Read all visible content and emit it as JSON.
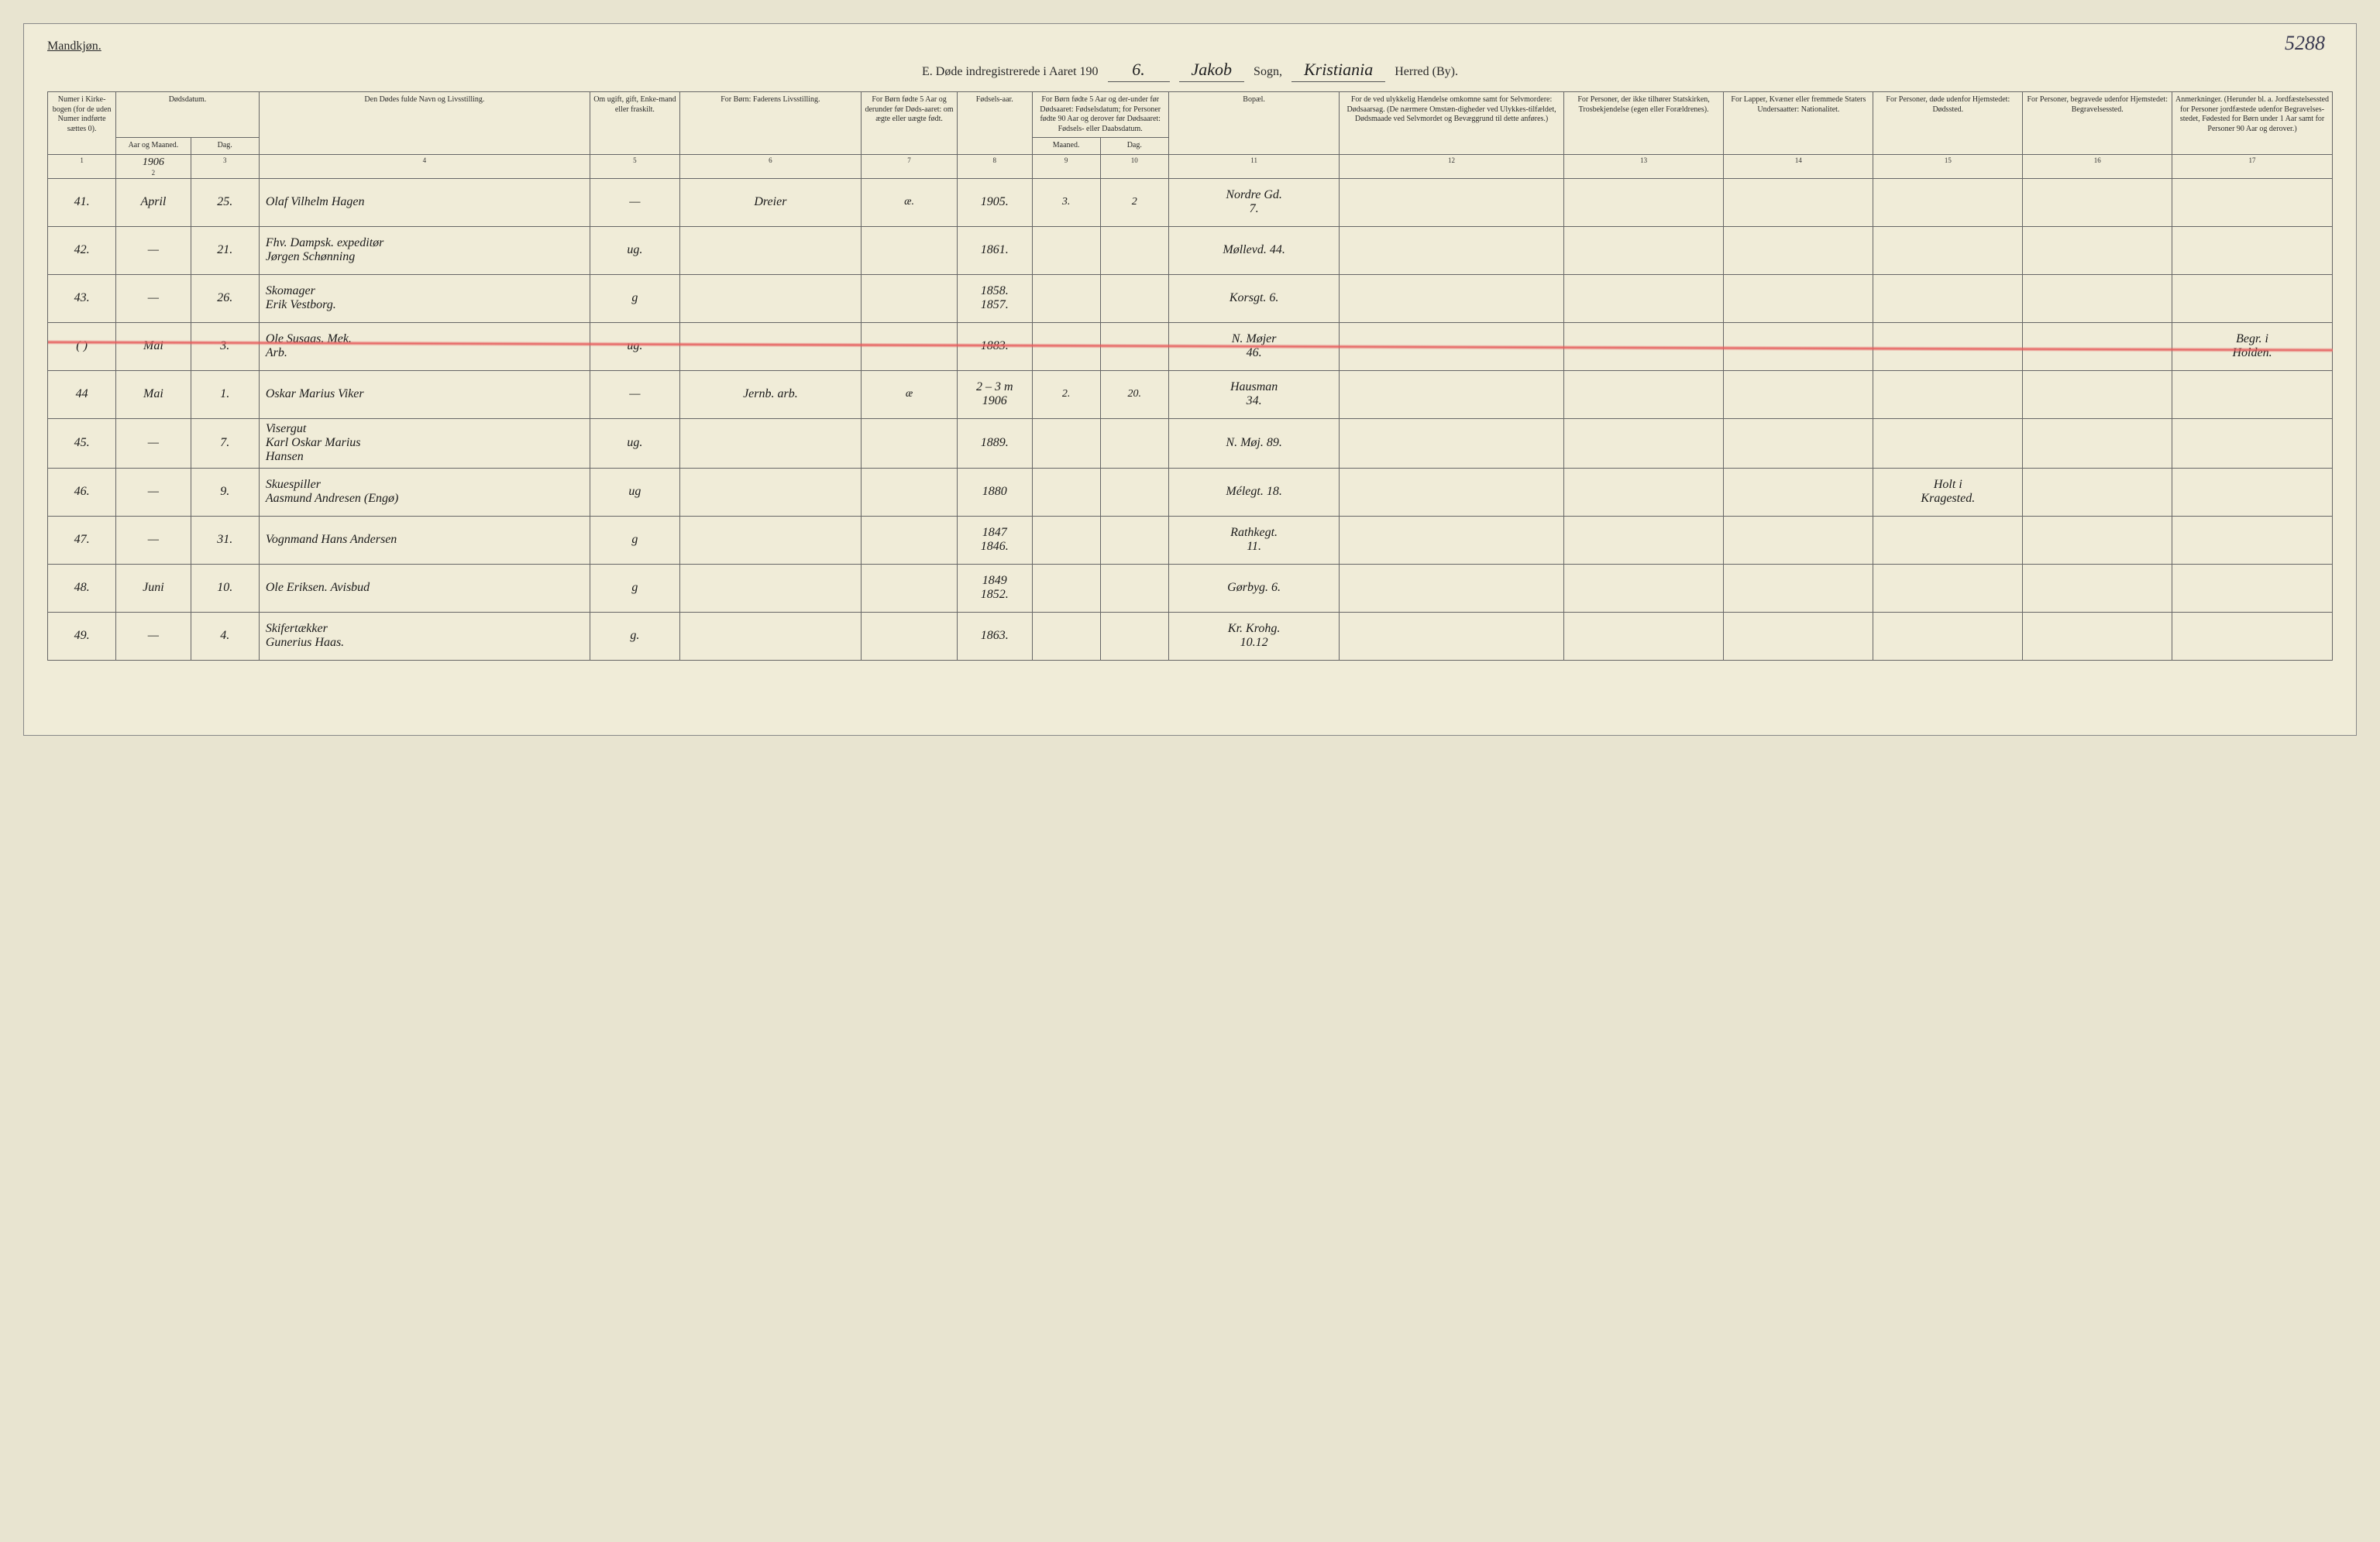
{
  "page_number_handwritten": "5288",
  "gender_label": "Mandkjøn.",
  "title": {
    "prefix": "E.  Døde indregistrerede i Aaret 190",
    "year_hw": "6.",
    "sogn_label": "Sogn,",
    "sogn_value_hw": "Jakob",
    "herred_label": "Herred (By).",
    "herred_value_hw": "Kristiania"
  },
  "columns": {
    "col_widths_pct": [
      3.2,
      3.5,
      3.2,
      15.5,
      4.2,
      8.5,
      4.5,
      3.5,
      3.2,
      3.2,
      8.0,
      10.5,
      7.5,
      7.0,
      7.0,
      7.0,
      7.5
    ],
    "headers": {
      "c1": {
        "top": "Numer i Kirke-bogen (for de uden Numer indførte sættes 0).",
        "span": 1
      },
      "c2_3": {
        "top": "Dødsdatum.",
        "sub_left": "Aar og Maaned.",
        "sub_right": "Dag."
      },
      "c4": "Den Dødes fulde Navn og Livsstilling.",
      "c5": "Om ugift, gift, Enke-mand eller fraskilt.",
      "c6": "For Børn:\nFaderens Livsstilling.",
      "c7": "For Børn fødte 5 Aar og derunder før Døds-aaret: om ægte eller uægte født.",
      "c8": "Fødsels-aar.",
      "c9_10": {
        "top": "For Børn fødte 5 Aar og der-under før Dødsaaret: Fødselsdatum; for Personer fødte 90 Aar og derover før Dødsaaret: Fødsels- eller Daabsdatum.",
        "sub_left": "Maaned.",
        "sub_right": "Dag."
      },
      "c11": "Bopæl.",
      "c12": "For de ved ulykkelig Hændelse omkomne samt for Selvmordere:\nDødsaarsag.\n(De nærmere Omstæn-digheder ved Ulykkes-tilfældet, Dødsmaade ved Selvmordet og Bevæggrund til dette anføres.)",
      "c13": "For Personer, der ikke tilhører Statskirken,\nTrosbekjendelse (egen eller Forældrenes).",
      "c14": "For Lapper, Kvæner eller fremmede Staters Undersaatter:\nNationalitet.",
      "c15": "For Personer, døde udenfor Hjemstedet:\nDødssted.",
      "c16": "For Personer, begravede udenfor Hjemstedet:\nBegravelsessted.",
      "c17": "Anmerkninger.\n(Herunder bl. a. Jordfæstelsessted for Personer jordfæstede udenfor Begravelses-stedet, Fødested for Børn under 1 Aar samt for Personer 90 Aar og derover.)"
    },
    "colnums": [
      "1",
      "2",
      "3",
      "4",
      "5",
      "6",
      "7",
      "8",
      "9",
      "10",
      "11",
      "12",
      "13",
      "14",
      "15",
      "16",
      "17"
    ]
  },
  "year_in_col2_hw": "1906",
  "rows": [
    {
      "num": "41.",
      "month": "April",
      "day": "25.",
      "name": "Olaf Vilhelm Hagen",
      "status": "—",
      "father": "Dreier",
      "legit": "æ.",
      "birthyear": "1905.",
      "bmon": "3.",
      "bday": "2",
      "bopael": "Nordre Gd.\n7.",
      "c12": "",
      "c13": "",
      "c14": "",
      "c15": "",
      "c16": "",
      "c17": "",
      "struck": false
    },
    {
      "num": "42.",
      "month": "—",
      "day": "21.",
      "name": "Fhv. Dampsk. expeditør\nJørgen Schønning",
      "status": "ug.",
      "father": "",
      "legit": "",
      "birthyear": "1861.",
      "bmon": "",
      "bday": "",
      "bopael": "Møllevd. 44.",
      "c12": "",
      "c13": "",
      "c14": "",
      "c15": "",
      "c16": "",
      "c17": "",
      "struck": false
    },
    {
      "num": "43.",
      "month": "—",
      "day": "26.",
      "name": "Skomager\nErik Vestborg.",
      "status": "g",
      "father": "",
      "legit": "",
      "birthyear": "1858.\n1857.",
      "bmon": "",
      "bday": "",
      "bopael": "Korsgt. 6.",
      "c12": "",
      "c13": "",
      "c14": "",
      "c15": "",
      "c16": "",
      "c17": "",
      "struck": false
    },
    {
      "num": "( )",
      "month": "Mai",
      "day": "3.",
      "name": "Ole Susaas. Mek.\nArb.",
      "status": "ug.",
      "father": "",
      "legit": "",
      "birthyear": "1883.",
      "bmon": "",
      "bday": "",
      "bopael": "N. Møjer\n46.",
      "c12": "",
      "c13": "",
      "c14": "",
      "c15": "",
      "c16": "",
      "c17": "Begr. i\nHolden.",
      "struck": true
    },
    {
      "num": "44",
      "month": "Mai",
      "day": "1.",
      "name": "Oskar Marius Viker",
      "status": "—",
      "father": "Jernb. arb.",
      "legit": "æ",
      "birthyear": "2 – 3 m\n1906",
      "bmon": "2.",
      "bday": "20.",
      "bopael": "Hausman\n34.",
      "c12": "",
      "c13": "",
      "c14": "",
      "c15": "",
      "c16": "",
      "c17": "",
      "struck": false
    },
    {
      "num": "45.",
      "month": "—",
      "day": "7.",
      "name": "Visergut\nKarl Oskar Marius\nHansen",
      "status": "ug.",
      "father": "",
      "legit": "",
      "birthyear": "1889.",
      "bmon": "",
      "bday": "",
      "bopael": "N. Møj. 89.",
      "c12": "",
      "c13": "",
      "c14": "",
      "c15": "",
      "c16": "",
      "c17": "",
      "struck": false
    },
    {
      "num": "46.",
      "month": "—",
      "day": "9.",
      "name": "Skuespiller\nAasmund Andresen (Engø)",
      "status": "ug",
      "father": "",
      "legit": "",
      "birthyear": "1880",
      "bmon": "",
      "bday": "",
      "bopael": "Mélegt. 18.",
      "c12": "",
      "c13": "",
      "c14": "",
      "c15": "Holt i\nKragested.",
      "c16": "",
      "c17": "",
      "struck": false
    },
    {
      "num": "47.",
      "month": "—",
      "day": "31.",
      "name": "Vognmand Hans Andersen",
      "status": "g",
      "father": "",
      "legit": "",
      "birthyear": "1847\n1846.",
      "bmon": "",
      "bday": "",
      "bopael": "Rathkegt.\n11.",
      "c12": "",
      "c13": "",
      "c14": "",
      "c15": "",
      "c16": "",
      "c17": "",
      "struck": false
    },
    {
      "num": "48.",
      "month": "Juni",
      "day": "10.",
      "name": "Ole Eriksen. Avisbud",
      "status": "g",
      "father": "",
      "legit": "",
      "birthyear": "1849\n1852.",
      "bmon": "",
      "bday": "",
      "bopael": "Gørbyg. 6.",
      "c12": "",
      "c13": "",
      "c14": "",
      "c15": "",
      "c16": "",
      "c17": "",
      "struck": false
    },
    {
      "num": "49.",
      "month": "—",
      "day": "4.",
      "name": "Skifertækker\nGunerius Haas.",
      "status": "g.",
      "father": "",
      "legit": "",
      "birthyear": "1863.",
      "bmon": "",
      "bday": "",
      "bopael": "Kr. Krohg.\n10.12",
      "c12": "",
      "c13": "",
      "c14": "",
      "c15": "",
      "c16": "",
      "c17": "",
      "struck": false
    }
  ],
  "styling": {
    "page_bg": "#f0ecd8",
    "border_color": "#666666",
    "strike_color": "#e65a5a",
    "handwriting_color": "#1a1a1a",
    "print_color": "#2a2a2a",
    "header_fontsize_pt": 10,
    "body_fontsize_pt": 16,
    "title_fontsize_pt": 16
  }
}
